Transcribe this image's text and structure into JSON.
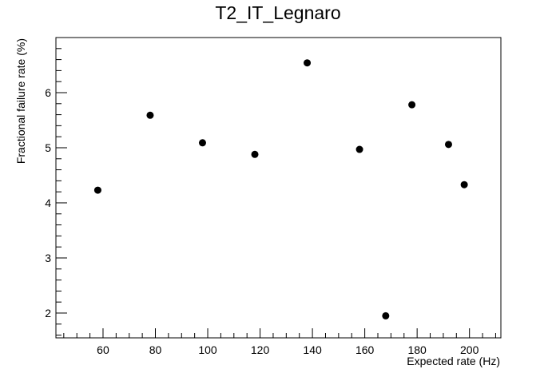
{
  "chart_data": {
    "type": "scatter",
    "title": "T2_IT_Legnaro",
    "xlabel": "Expected rate (Hz)",
    "ylabel": "Fractional failure rate (%)",
    "xlim": [
      42,
      212
    ],
    "ylim": [
      1.55,
      7.0
    ],
    "x_ticks": [
      60,
      80,
      100,
      120,
      140,
      160,
      180,
      200
    ],
    "y_ticks": [
      2,
      3,
      4,
      5,
      6
    ],
    "grid": false,
    "series": [
      {
        "points": [
          {
            "x": 58,
            "y": 4.23
          },
          {
            "x": 78,
            "y": 5.59
          },
          {
            "x": 98,
            "y": 5.09
          },
          {
            "x": 118,
            "y": 4.88
          },
          {
            "x": 138,
            "y": 6.54
          },
          {
            "x": 158,
            "y": 4.97
          },
          {
            "x": 168,
            "y": 1.95
          },
          {
            "x": 178,
            "y": 5.78
          },
          {
            "x": 192,
            "y": 5.06
          },
          {
            "x": 198,
            "y": 4.33
          }
        ],
        "color": "#000000"
      }
    ]
  }
}
